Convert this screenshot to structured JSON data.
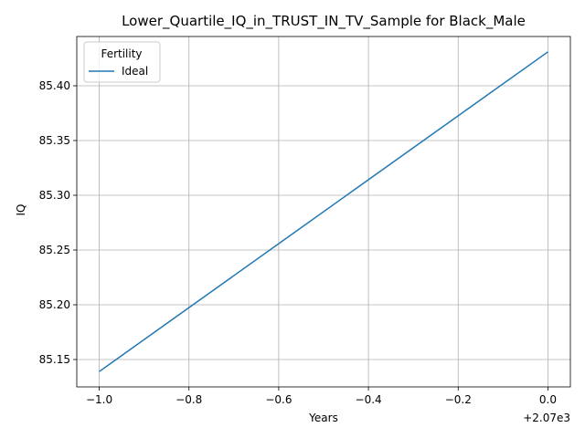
{
  "chart_data": {
    "type": "line",
    "title": "Lower_Quartile_IQ_in_TRUST_IN_TV_Sample for Black_Male",
    "xlabel": "Years",
    "ylabel": "IQ",
    "x_offset_label": "+2.07e3",
    "xlim": [
      2068.95,
      2070.05
    ],
    "ylim": [
      85.125,
      85.445
    ],
    "x_ticks": [
      2069.0,
      2069.2,
      2069.4,
      2069.6,
      2069.8,
      2070.0
    ],
    "x_tick_labels": [
      "−1.0",
      "−0.8",
      "−0.6",
      "−0.4",
      "−0.2",
      "0.0"
    ],
    "y_ticks": [
      85.15,
      85.2,
      85.25,
      85.3,
      85.35,
      85.4
    ],
    "y_tick_labels": [
      "85.15",
      "85.20",
      "85.25",
      "85.30",
      "85.35",
      "85.40"
    ],
    "grid": true,
    "legend": {
      "title": "Fertility",
      "placement": "upper-left"
    },
    "series": [
      {
        "name": "Ideal",
        "color": "#1f77b4",
        "x": [
          2069,
          2070
        ],
        "y": [
          85.139,
          85.431
        ]
      }
    ]
  }
}
